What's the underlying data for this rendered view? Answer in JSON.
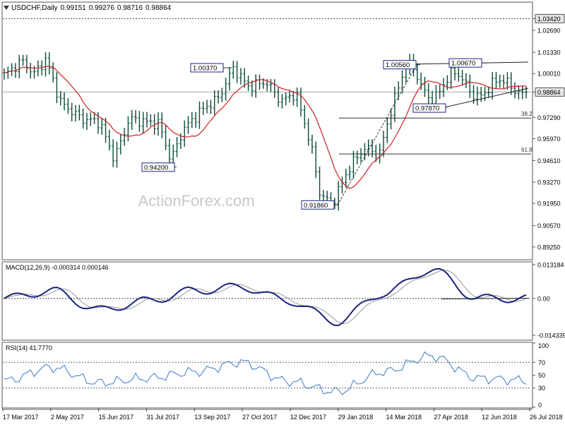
{
  "chart_data": {
    "type": "candlestick",
    "symbol": "USDCHF",
    "timeframe": "Daily",
    "ohlc": [
      "0.99151",
      "0.99276",
      "0.98716",
      "0.98864"
    ],
    "watermark": "ActionForex.com",
    "price_axis": {
      "range": [
        0.885,
        1.044
      ],
      "ticks": [
        "1.03420",
        "1.02690",
        "1.01330",
        "1.00010",
        "0.98864",
        "0.97290",
        "0.95970",
        "0.94610",
        "0.93270",
        "0.91950",
        "0.90570",
        "0.89250"
      ]
    },
    "last_price": "0.98864",
    "top_level": "1.03420",
    "x_labels": [
      "17 Mar 2017",
      "2 May 2017",
      "15 Jun 2017",
      "31 Jul 2017",
      "13 Sep 2017",
      "27 Oct 2017",
      "12 Dec 2017",
      "29 Jan 2018",
      "14 Mar 2018",
      "27 Apr 2018",
      "12 Jun 2018",
      "26 Jul 2018"
    ],
    "anchors": [
      {
        "label": "17 Mar 2017",
        "close": 0.999
      },
      {
        "label": "2 May 2017",
        "close": 1.0
      },
      {
        "label": "15 Jun 2017",
        "close": 0.968
      },
      {
        "label": "31 Jul 2017",
        "close": 0.962
      },
      {
        "label": "13 Sep 2017",
        "close": 0.958
      },
      {
        "label": "27 Oct 2017",
        "close": 0.999
      },
      {
        "label": "12 Dec 2017",
        "close": 0.99
      },
      {
        "label": "29 Jan 2018",
        "close": 0.933
      },
      {
        "label": "14 Mar 2018",
        "close": 0.948
      },
      {
        "label": "27 Apr 2018",
        "close": 0.999
      },
      {
        "label": "12 Jun 2018",
        "close": 0.99
      },
      {
        "label": "26 Jul 2018",
        "close": 0.992
      }
    ],
    "annotations": [
      {
        "label": "1.00370",
        "value": 1.0037
      },
      {
        "label": "0.94200",
        "value": 0.942
      },
      {
        "label": "0.91860",
        "value": 0.9186
      },
      {
        "label": "1.00560",
        "value": 1.0056
      },
      {
        "label": "1.00670",
        "value": 1.0067
      },
      {
        "label": "0.97870",
        "value": 0.9787
      }
    ],
    "fibonacci": [
      {
        "label": "38.2",
        "value": 0.9725
      },
      {
        "label": "61.8",
        "value": 0.9502
      }
    ],
    "macd": {
      "title": "MACD(12,26,9) -0.000314 0.000146",
      "range": [
        -0.016,
        0.014
      ],
      "ticks": [
        "0.013184",
        "0.00",
        "-0.014339"
      ],
      "anchors": [
        0.0,
        0.003,
        -0.0045,
        -0.001,
        0.003,
        0.0045,
        -0.001,
        -0.009,
        0.002,
        0.0112,
        0.0,
        0.0
      ]
    },
    "rsi": {
      "title": "RSI(14) 41.7770",
      "range": [
        0,
        100
      ],
      "ticks": [
        "100",
        "70",
        "50",
        "30",
        "0"
      ],
      "levels": [
        70,
        30
      ],
      "anchors": [
        41,
        62,
        38,
        45,
        55,
        70,
        40,
        24,
        55,
        80,
        45,
        42
      ]
    },
    "colors": {
      "candle": "#0d4a3a",
      "ma": "#cc2222",
      "macd": "#1a237e",
      "signal": "#999999",
      "rsi": "#3a78c8",
      "label_border": "#1a237e"
    }
  }
}
